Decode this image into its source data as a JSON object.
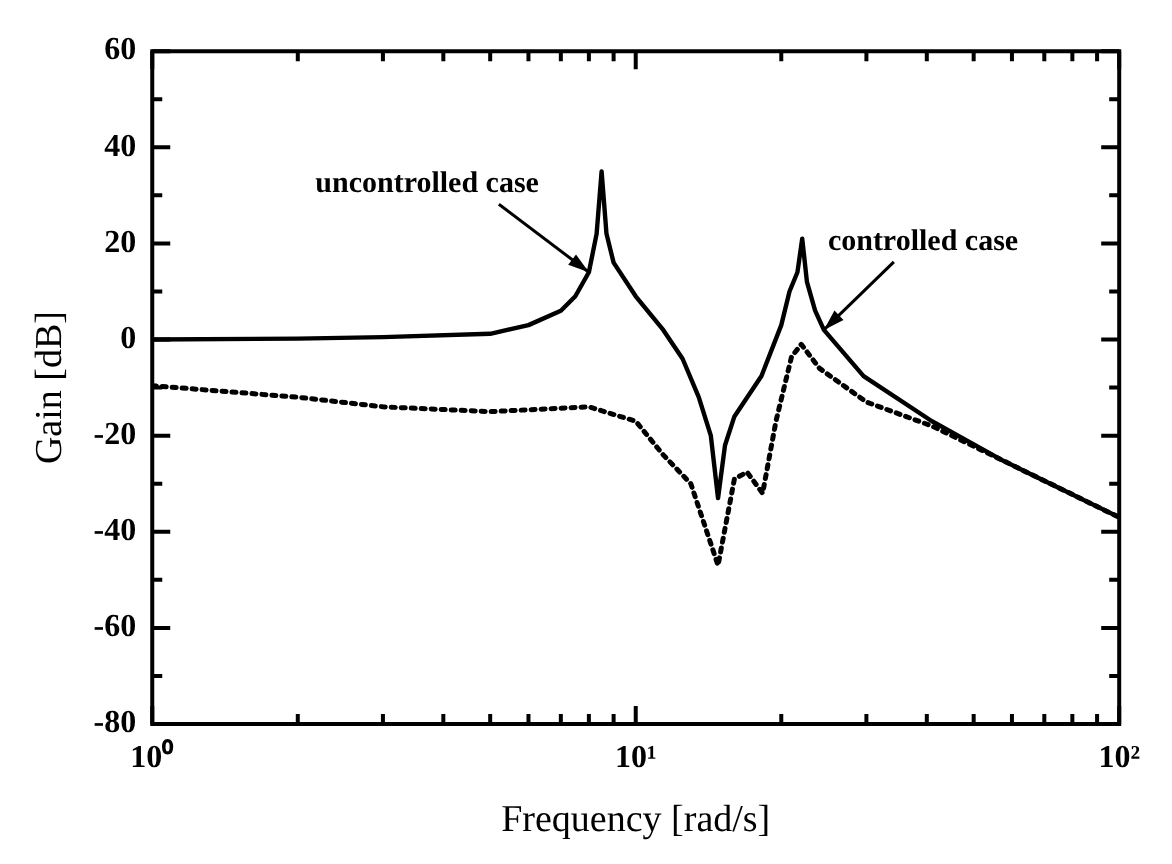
{
  "chart_data": {
    "type": "line",
    "xlabel": "Frequency [rad/s]",
    "ylabel": "Gain [dB]",
    "log": "x",
    "grid": false,
    "legend": false,
    "marker": "none",
    "xlim": [
      1,
      100
    ],
    "ylim": [
      -80,
      60
    ],
    "xticks": [
      {
        "value": 1,
        "label": "10⁰"
      },
      {
        "value": 2,
        "label": null
      },
      {
        "value": 3,
        "label": null
      },
      {
        "value": 4,
        "label": null
      },
      {
        "value": 5,
        "label": null
      },
      {
        "value": 6,
        "label": null
      },
      {
        "value": 7,
        "label": null
      },
      {
        "value": 8,
        "label": null
      },
      {
        "value": 9,
        "label": null
      },
      {
        "value": 10,
        "label": "10¹"
      },
      {
        "value": 20,
        "label": null
      },
      {
        "value": 30,
        "label": null
      },
      {
        "value": 40,
        "label": null
      },
      {
        "value": 50,
        "label": null
      },
      {
        "value": 60,
        "label": null
      },
      {
        "value": 70,
        "label": null
      },
      {
        "value": 80,
        "label": null
      },
      {
        "value": 90,
        "label": null
      },
      {
        "value": 100,
        "label": "10²"
      }
    ],
    "yticks": [
      -80,
      {
        "value": -70,
        "label": null
      },
      -60,
      {
        "value": -50,
        "label": null
      },
      -40,
      {
        "value": -30,
        "label": null
      },
      -20,
      {
        "value": -10,
        "label": null
      },
      0,
      {
        "value": 10,
        "label": null
      },
      20,
      {
        "value": 30,
        "label": null
      },
      40,
      {
        "value": 50,
        "label": null
      },
      60
    ],
    "series": [
      {
        "color": "#000000",
        "line_style": "solid",
        "x": [
          1,
          2,
          3,
          5,
          6,
          7,
          7.5,
          8,
          8.3,
          8.5,
          8.7,
          9,
          10,
          11.4,
          12.5,
          13.5,
          14.3,
          14.8,
          15.3,
          16,
          18.2,
          20,
          20.8,
          21.6,
          22.1,
          22.6,
          23.5,
          24.5,
          29.6,
          41,
          57,
          100
        ],
        "values": [
          0,
          0.2,
          0.5,
          1.2,
          3,
          6,
          9,
          14,
          22,
          35,
          22,
          16,
          9,
          2,
          -4,
          -12,
          -20,
          -33,
          -22,
          -16,
          -7.6,
          3,
          10,
          14,
          21,
          12,
          6,
          2,
          -7.6,
          -17,
          -25,
          -37
        ]
      },
      {
        "color": "#000000",
        "line_style": "dotted",
        "x": [
          1,
          2,
          3,
          5,
          8,
          10,
          11.4,
          13,
          14.8,
          16,
          17,
          18.3,
          19.5,
          21,
          22,
          24,
          30,
          41,
          57,
          100
        ],
        "values": [
          -9.6,
          -12,
          -14,
          -15,
          -14,
          -17,
          -24,
          -30,
          -47,
          -29,
          -27.6,
          -32,
          -17,
          -3.6,
          -1,
          -6,
          -13,
          -18,
          -25,
          -37
        ]
      }
    ],
    "annotations": [
      {
        "text": "uncontrolled case",
        "x": 8,
        "y": 14
      },
      {
        "text": "controlled case",
        "x": 24.5,
        "y": 2
      }
    ]
  }
}
